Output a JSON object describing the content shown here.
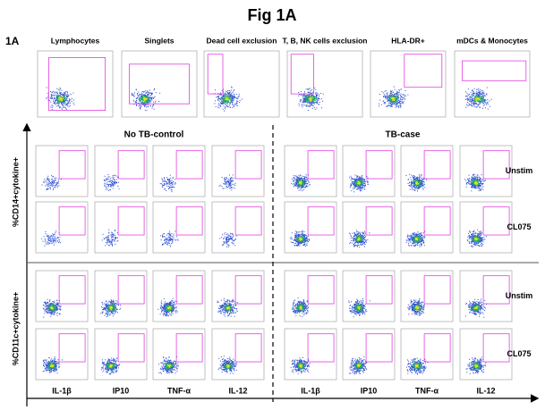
{
  "figure": {
    "title": "Fig 1A",
    "panel_label": "1A",
    "gating": [
      "Lymphocytes",
      "Singlets",
      "Dead cell exclusion",
      "T, B, NK cells exclusion",
      "HLA-DR+",
      "mDCs & Monocytes"
    ],
    "groups": [
      {
        "name": "No TB-control",
        "columns": [
          "IL-1β",
          "IP10",
          "TNF-α",
          "IL-12"
        ]
      },
      {
        "name": "TB-case",
        "columns": [
          "IL-1β",
          "IP10",
          "TNF-α",
          "IL-12"
        ]
      }
    ],
    "y_axis_labels": [
      "%CD14+cytokine+",
      "%CD11c+cytokine+"
    ],
    "row_labels": [
      "Unstim",
      "CL075",
      "Unstim",
      "CL075"
    ]
  }
}
